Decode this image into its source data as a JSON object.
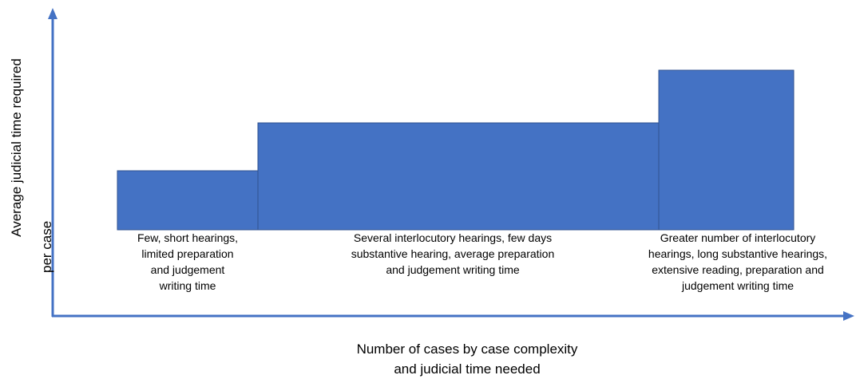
{
  "y_axis_label": [
    "Average judicial time required",
    "per case"
  ],
  "x_axis_label": [
    "Number of cases by case complexity",
    "and judicial time needed"
  ],
  "blocks": [
    {
      "label": [
        "Few, short hearings,",
        "limited preparation",
        "and judgement",
        "writing time"
      ]
    },
    {
      "label": [
        "Several interlocutory hearings, few days",
        "substantive hearing, average preparation",
        "and judgement writing time"
      ]
    },
    {
      "label": [
        "Greater number of interlocutory",
        "hearings, long substantive hearings,",
        "extensive reading, preparation and",
        "judgement writing time"
      ]
    }
  ]
}
